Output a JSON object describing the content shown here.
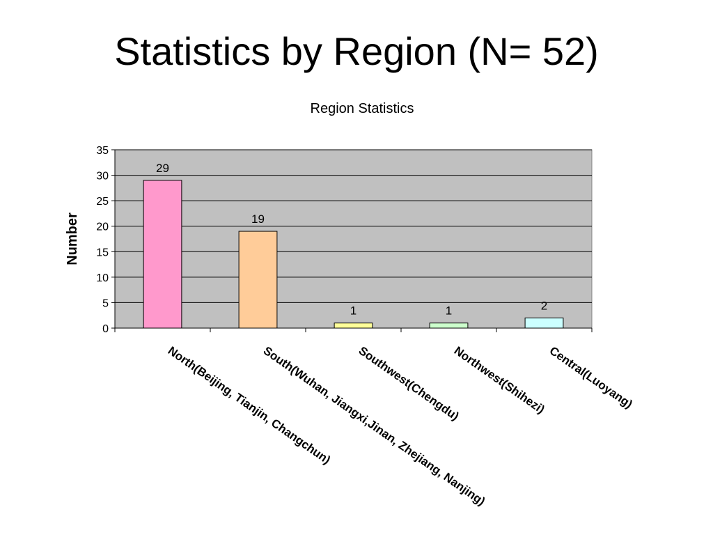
{
  "slide": {
    "title": "Statistics by Region (N= 52)"
  },
  "chart_data": {
    "type": "bar",
    "title": "Region Statistics",
    "xlabel": "",
    "ylabel": "Number",
    "categories": [
      "North(Beijing, Tianjin, Changchun)",
      "South(Wuhan, Jiangxi,Jinan, Zhejiang, Nanjing)",
      "Southwest(Chengdu)",
      "Northwest(Shihezi)",
      "Central(Luoyang)"
    ],
    "values": [
      29,
      19,
      1,
      1,
      2
    ],
    "data_labels": [
      "29",
      "19",
      "1",
      "1",
      "2"
    ],
    "ylim": [
      0,
      35
    ],
    "yticks": [
      0,
      5,
      10,
      15,
      20,
      25,
      30,
      35
    ],
    "grid": true,
    "legend": "none",
    "colors": {
      "bars": [
        "#ff99cc",
        "#ffcc99",
        "#ffff99",
        "#ccffcc",
        "#ccffff"
      ],
      "plot_background": "#c0c0c0",
      "gridline": "#000000",
      "bar_outline": "#000000"
    }
  }
}
